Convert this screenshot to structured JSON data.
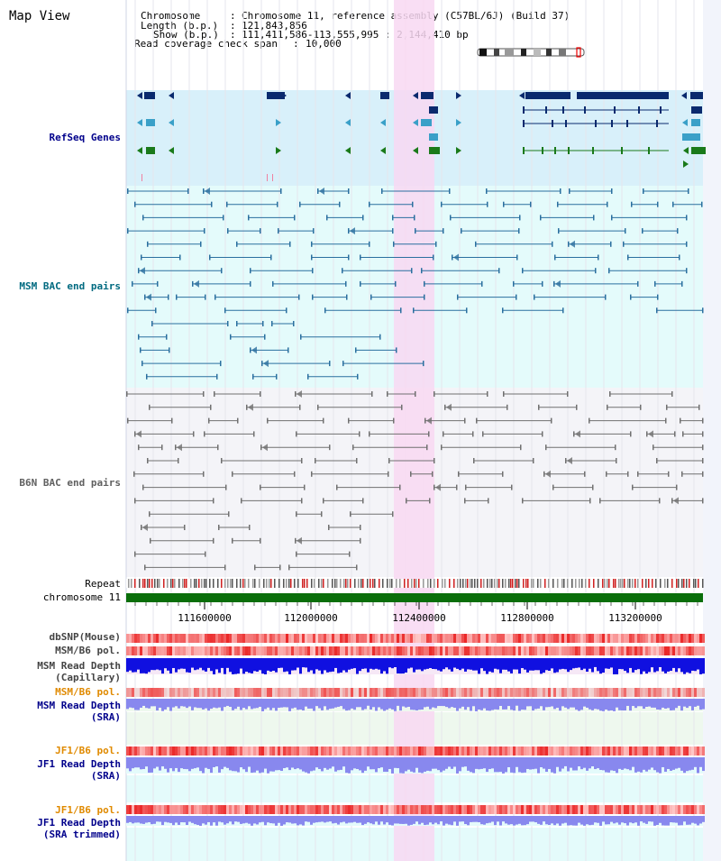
{
  "page_title": "Map View",
  "info": {
    "rows": [
      {
        "key": "Chromosome",
        "sep": ":",
        "value": "Chromosome 11, reference assembly (C57BL/6J) (Build 37)"
      },
      {
        "key": "Length (b.p.)",
        "sep": ":",
        "value": "121,843,856"
      },
      {
        "key": "Show (b.p.)",
        "sep": ":",
        "value": "111,411,586-113,555,995 : 2,144,410 bp"
      },
      {
        "key": "Read coverage check span",
        "sep": ":",
        "value": "10,000"
      }
    ]
  },
  "tracks": {
    "refseq": "RefSeq Genes",
    "msm_bac": "MSM BAC end pairs",
    "b6n_bac": "B6N BAC end pairs",
    "repeat": "Repeat",
    "chromosome": "chromosome 11",
    "dbsnp": "dbSNP(Mouse)",
    "msm_b6_pol": "MSM/B6 pol.",
    "msm_depth_cap": "MSM Read Depth\n(Capillary)",
    "msm_b6_pol2": "MSM/B6 pol.",
    "msm_depth_sra": "MSM Read Depth\n(SRA)",
    "jf1_b6_pol": "JF1/B6 pol.",
    "jf1_depth_sra": "JF1 Read Depth\n(SRA)",
    "jf1_b6_pol2": "JF1/B6 pol.",
    "jf1_depth_sra_trim": "JF1 Read Depth\n(SRA trimmed)"
  },
  "axis": {
    "ticks": [
      "111600000",
      "112000000",
      "112400000",
      "112800000",
      "113200000"
    ]
  },
  "colors": {
    "highlight": "#f8d8f2",
    "refseq_bg": "#d8f0fa",
    "msm_bg": "#e4fbfb",
    "b6n_bg": "#f4f4f8",
    "gene_navy": "#0a2a6e",
    "gene_blue": "#3aa0c8",
    "gene_green": "#1a7a1a",
    "msm_line": "#2a6f9f",
    "b6n_line": "#707070",
    "chrom_green": "#0a6e0a",
    "depth_blue": "#1010e0",
    "depth_light": "#8888ee",
    "label_navy": "#00008b",
    "label_teal": "#006a80",
    "label_gray": "#606060",
    "label_orange": "#e08a00"
  }
}
